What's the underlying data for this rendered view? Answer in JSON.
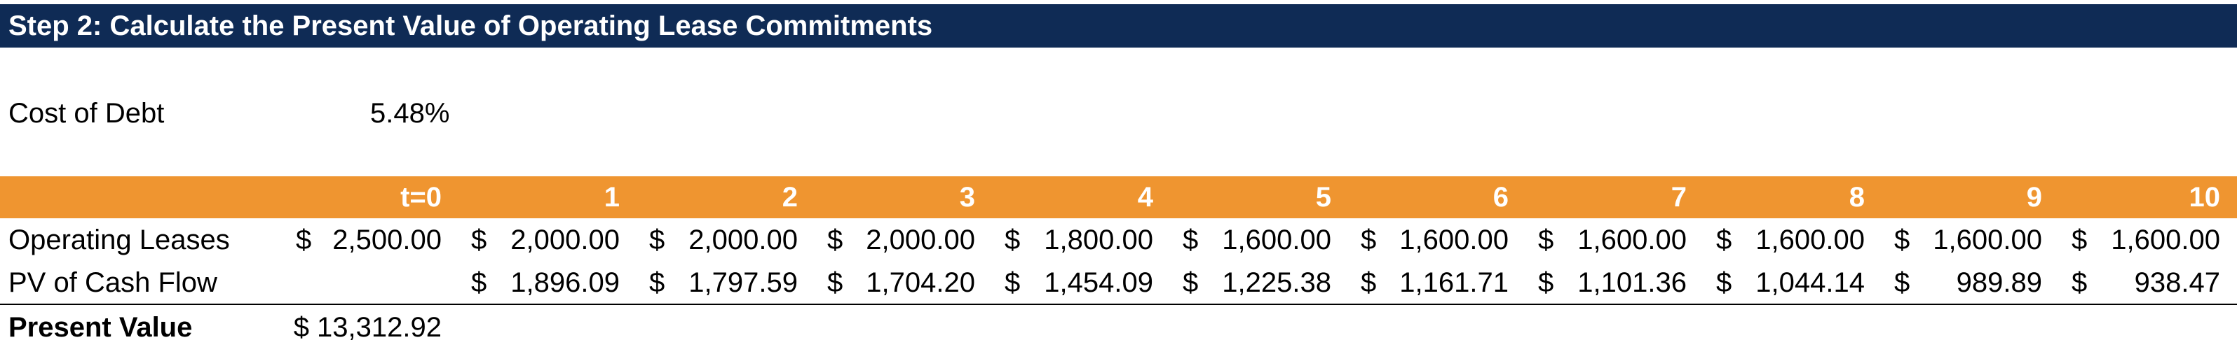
{
  "title": "Step 2: Calculate the Present Value of Operating Lease Commitments",
  "cost_of_debt": {
    "label": "Cost of Debt",
    "value": "5.48%"
  },
  "header": {
    "periods": [
      "t=0",
      "1",
      "2",
      "3",
      "4",
      "5",
      "6",
      "7",
      "8",
      "9",
      "10"
    ]
  },
  "rows": {
    "operating_leases": {
      "label": "Operating Leases",
      "currency": "$",
      "values": [
        "2,500.00",
        "2,000.00",
        "2,000.00",
        "2,000.00",
        "1,800.00",
        "1,600.00",
        "1,600.00",
        "1,600.00",
        "1,600.00",
        "1,600.00",
        "1,600.00"
      ]
    },
    "pv_cash_flow": {
      "label": "PV of Cash Flow",
      "currency": "$",
      "values": [
        "",
        "1,896.09",
        "1,797.59",
        "1,704.20",
        "1,454.09",
        "1,225.38",
        "1,161.71",
        "1,101.36",
        "1,044.14",
        "989.89",
        "938.47"
      ]
    },
    "present_value": {
      "label": "Present Value",
      "value": "$ 13,312.92"
    }
  },
  "colors": {
    "title_bg": "#0f2b55",
    "header_bg": "#ef9530"
  }
}
